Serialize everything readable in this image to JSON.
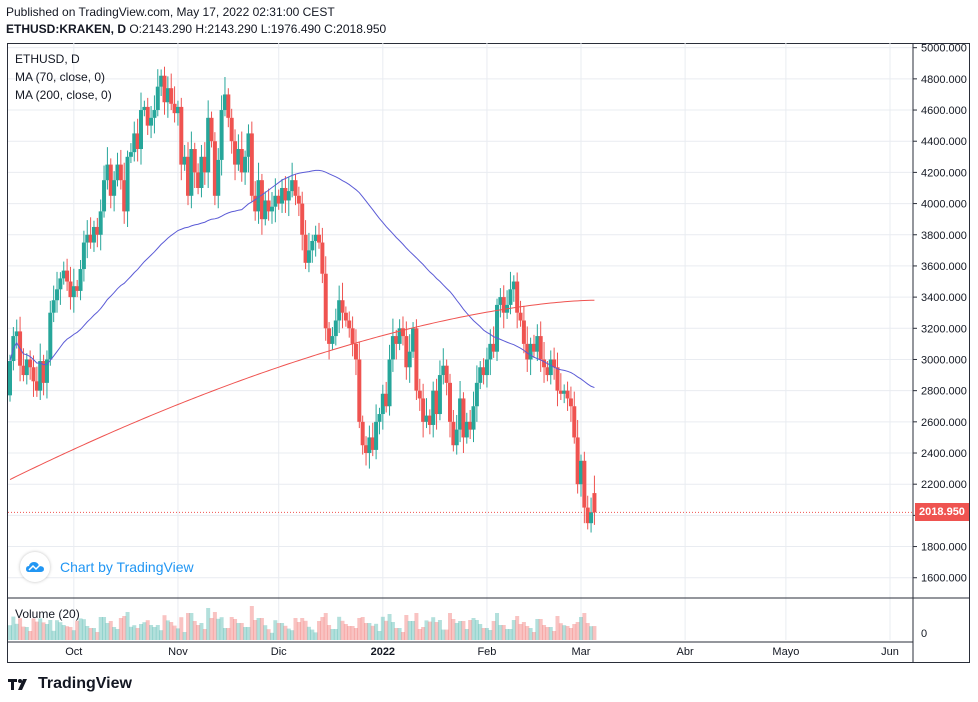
{
  "header": {
    "published": "Published on TradingView.com, May 17, 2022 02:31:00 CEST",
    "symbol": "ETHUSD:KRAKEN, D",
    "ohlc": "O:2143.290 H:2143.290 L:1976.490 C:2018.950"
  },
  "legend": {
    "symbol": "ETHUSD, D",
    "ma70": "MA (70, close, 0)",
    "ma200": "MA (200, close, 0)",
    "volume": "Volume (20)"
  },
  "branding": {
    "chart_by": "Chart by TradingView",
    "footer": "TradingView"
  },
  "last_price": "2018.950",
  "colors": {
    "up": "#26a69a",
    "down": "#ef5350",
    "ma70": "#5b5bd6",
    "ma200": "#ef5350",
    "grid": "#e9ecf1",
    "text": "#131722"
  },
  "chart_data": {
    "type": "candlestick",
    "y_ticks": [
      "5000.000",
      "4800.000",
      "4600.000",
      "4400.000",
      "4200.000",
      "4000.000",
      "3800.000",
      "3600.000",
      "3400.000",
      "3200.000",
      "3000.000",
      "2800.000",
      "2600.000",
      "2400.000",
      "2200.000",
      "2000.000",
      "1800.000",
      "1600.000"
    ],
    "ylim": [
      1470,
      5030
    ],
    "volume_tick": "0",
    "x_labels": [
      {
        "label": "Oct",
        "day": 19
      },
      {
        "label": "Nov",
        "day": 50
      },
      {
        "label": "Dic",
        "day": 80
      },
      {
        "label": "2022",
        "day": 111
      },
      {
        "label": "Feb",
        "day": 142
      },
      {
        "label": "Mar",
        "day": 170
      },
      {
        "label": "Abr",
        "day": 201
      },
      {
        "label": "Mayo",
        "day": 231
      },
      {
        "label": "Jun",
        "day": 262
      }
    ],
    "x_range": [
      0,
      262
    ],
    "candles": [
      {
        "d": 0,
        "o": 2770,
        "c": 2990
      },
      {
        "d": 1,
        "o": 2990,
        "c": 3150
      },
      {
        "d": 2,
        "o": 3150,
        "c": 3180
      },
      {
        "d": 3,
        "o": 3180,
        "c": 2960
      },
      {
        "d": 4,
        "o": 2960,
        "c": 2900
      },
      {
        "d": 5,
        "o": 2900,
        "c": 3000
      },
      {
        "d": 6,
        "o": 3000,
        "c": 2950
      },
      {
        "d": 7,
        "o": 2950,
        "c": 2860
      },
      {
        "d": 8,
        "o": 2860,
        "c": 2800
      },
      {
        "d": 9,
        "o": 2800,
        "c": 2990
      },
      {
        "d": 10,
        "o": 2990,
        "c": 2850
      },
      {
        "d": 11,
        "o": 2850,
        "c": 3000
      },
      {
        "d": 12,
        "o": 3000,
        "c": 3300
      },
      {
        "d": 13,
        "o": 3300,
        "c": 3380
      },
      {
        "d": 14,
        "o": 3380,
        "c": 3450
      },
      {
        "d": 15,
        "o": 3450,
        "c": 3520
      },
      {
        "d": 16,
        "o": 3520,
        "c": 3570
      },
      {
        "d": 17,
        "o": 3570,
        "c": 3500
      },
      {
        "d": 18,
        "o": 3500,
        "c": 3400
      },
      {
        "d": 19,
        "o": 3400,
        "c": 3470
      },
      {
        "d": 20,
        "o": 3470,
        "c": 3440
      },
      {
        "d": 21,
        "o": 3440,
        "c": 3580
      },
      {
        "d": 22,
        "o": 3580,
        "c": 3750
      },
      {
        "d": 23,
        "o": 3750,
        "c": 3800
      },
      {
        "d": 24,
        "o": 3800,
        "c": 3750
      },
      {
        "d": 25,
        "o": 3750,
        "c": 3850
      },
      {
        "d": 26,
        "o": 3850,
        "c": 3800
      },
      {
        "d": 27,
        "o": 3800,
        "c": 3950
      },
      {
        "d": 28,
        "o": 3950,
        "c": 4150
      },
      {
        "d": 29,
        "o": 4150,
        "c": 4250
      },
      {
        "d": 30,
        "o": 4250,
        "c": 4050
      },
      {
        "d": 31,
        "o": 4050,
        "c": 4150
      },
      {
        "d": 32,
        "o": 4150,
        "c": 4250
      },
      {
        "d": 33,
        "o": 4250,
        "c": 4150
      },
      {
        "d": 34,
        "o": 4150,
        "c": 3950
      },
      {
        "d": 35,
        "o": 3950,
        "c": 4300
      },
      {
        "d": 36,
        "o": 4300,
        "c": 4330
      },
      {
        "d": 37,
        "o": 4330,
        "c": 4450
      },
      {
        "d": 38,
        "o": 4450,
        "c": 4350
      },
      {
        "d": 39,
        "o": 4350,
        "c": 4600
      },
      {
        "d": 40,
        "o": 4600,
        "c": 4620
      },
      {
        "d": 41,
        "o": 4620,
        "c": 4500
      },
      {
        "d": 42,
        "o": 4500,
        "c": 4550
      },
      {
        "d": 43,
        "o": 4550,
        "c": 4600
      },
      {
        "d": 44,
        "o": 4600,
        "c": 4750
      },
      {
        "d": 45,
        "o": 4750,
        "c": 4820
      },
      {
        "d": 46,
        "o": 4820,
        "c": 4650
      },
      {
        "d": 47,
        "o": 4650,
        "c": 4740
      },
      {
        "d": 48,
        "o": 4740,
        "c": 4640
      },
      {
        "d": 49,
        "o": 4640,
        "c": 4580
      },
      {
        "d": 50,
        "o": 4580,
        "c": 4620
      },
      {
        "d": 51,
        "o": 4620,
        "c": 4250
      },
      {
        "d": 52,
        "o": 4250,
        "c": 4300
      },
      {
        "d": 53,
        "o": 4300,
        "c": 4050
      },
      {
        "d": 54,
        "o": 4050,
        "c": 4350
      },
      {
        "d": 55,
        "o": 4350,
        "c": 4200
      },
      {
        "d": 56,
        "o": 4200,
        "c": 4100
      },
      {
        "d": 57,
        "o": 4100,
        "c": 4300
      },
      {
        "d": 58,
        "o": 4300,
        "c": 4200
      },
      {
        "d": 59,
        "o": 4200,
        "c": 4550
      },
      {
        "d": 60,
        "o": 4550,
        "c": 4400
      },
      {
        "d": 61,
        "o": 4400,
        "c": 4050
      },
      {
        "d": 62,
        "o": 4050,
        "c": 4280
      },
      {
        "d": 63,
        "o": 4280,
        "c": 4600
      },
      {
        "d": 64,
        "o": 4600,
        "c": 4700
      },
      {
        "d": 65,
        "o": 4700,
        "c": 4550
      },
      {
        "d": 66,
        "o": 4550,
        "c": 4400
      },
      {
        "d": 67,
        "o": 4400,
        "c": 4250
      },
      {
        "d": 68,
        "o": 4250,
        "c": 4350
      },
      {
        "d": 69,
        "o": 4350,
        "c": 4200
      },
      {
        "d": 70,
        "o": 4200,
        "c": 4300
      },
      {
        "d": 71,
        "o": 4300,
        "c": 4450
      },
      {
        "d": 72,
        "o": 4450,
        "c": 4050
      },
      {
        "d": 73,
        "o": 4050,
        "c": 3950
      },
      {
        "d": 74,
        "o": 3950,
        "c": 4150
      },
      {
        "d": 75,
        "o": 4150,
        "c": 3900
      },
      {
        "d": 76,
        "o": 3900,
        "c": 4020
      },
      {
        "d": 77,
        "o": 4020,
        "c": 3950
      },
      {
        "d": 78,
        "o": 3950,
        "c": 3980
      },
      {
        "d": 79,
        "o": 3980,
        "c": 4050
      },
      {
        "d": 80,
        "o": 4050,
        "c": 4000
      },
      {
        "d": 81,
        "o": 4000,
        "c": 4100
      },
      {
        "d": 82,
        "o": 4100,
        "c": 4020
      },
      {
        "d": 83,
        "o": 4020,
        "c": 4080
      },
      {
        "d": 84,
        "o": 4080,
        "c": 4150
      },
      {
        "d": 85,
        "o": 4150,
        "c": 4050
      },
      {
        "d": 86,
        "o": 4050,
        "c": 4000
      },
      {
        "d": 87,
        "o": 4000,
        "c": 3800
      },
      {
        "d": 88,
        "o": 3800,
        "c": 3620
      },
      {
        "d": 89,
        "o": 3620,
        "c": 3700
      },
      {
        "d": 90,
        "o": 3700,
        "c": 3760
      },
      {
        "d": 91,
        "o": 3760,
        "c": 3800
      },
      {
        "d": 92,
        "o": 3800,
        "c": 3750
      },
      {
        "d": 93,
        "o": 3750,
        "c": 3550
      },
      {
        "d": 94,
        "o": 3550,
        "c": 3200
      },
      {
        "d": 95,
        "o": 3200,
        "c": 3100
      },
      {
        "d": 96,
        "o": 3100,
        "c": 3150
      },
      {
        "d": 97,
        "o": 3150,
        "c": 3250
      },
      {
        "d": 98,
        "o": 3250,
        "c": 3380
      },
      {
        "d": 99,
        "o": 3380,
        "c": 3300
      },
      {
        "d": 100,
        "o": 3300,
        "c": 3250
      },
      {
        "d": 101,
        "o": 3250,
        "c": 3200
      },
      {
        "d": 102,
        "o": 3200,
        "c": 3100
      },
      {
        "d": 103,
        "o": 3100,
        "c": 3000
      },
      {
        "d": 104,
        "o": 3000,
        "c": 2600
      },
      {
        "d": 105,
        "o": 2600,
        "c": 2450
      },
      {
        "d": 106,
        "o": 2450,
        "c": 2400
      },
      {
        "d": 107,
        "o": 2400,
        "c": 2500
      },
      {
        "d": 108,
        "o": 2500,
        "c": 2420
      },
      {
        "d": 109,
        "o": 2420,
        "c": 2600
      },
      {
        "d": 110,
        "o": 2600,
        "c": 2650
      },
      {
        "d": 111,
        "o": 2650,
        "c": 2780
      },
      {
        "d": 112,
        "o": 2780,
        "c": 2700
      },
      {
        "d": 113,
        "o": 2700,
        "c": 3000
      },
      {
        "d": 114,
        "o": 3000,
        "c": 3150
      },
      {
        "d": 115,
        "o": 3150,
        "c": 3100
      },
      {
        "d": 116,
        "o": 3100,
        "c": 3200
      },
      {
        "d": 117,
        "o": 3200,
        "c": 3150
      },
      {
        "d": 118,
        "o": 3150,
        "c": 2950
      },
      {
        "d": 119,
        "o": 2950,
        "c": 3050
      },
      {
        "d": 120,
        "o": 3050,
        "c": 3200
      },
      {
        "d": 121,
        "o": 3200,
        "c": 2800
      },
      {
        "d": 122,
        "o": 2800,
        "c": 2750
      },
      {
        "d": 123,
        "o": 2750,
        "c": 2600
      },
      {
        "d": 124,
        "o": 2600,
        "c": 2640
      },
      {
        "d": 125,
        "o": 2640,
        "c": 2580
      },
      {
        "d": 126,
        "o": 2580,
        "c": 2800
      },
      {
        "d": 127,
        "o": 2800,
        "c": 2650
      },
      {
        "d": 128,
        "o": 2650,
        "c": 2900
      },
      {
        "d": 129,
        "o": 2900,
        "c": 2960
      },
      {
        "d": 130,
        "o": 2960,
        "c": 2850
      },
      {
        "d": 131,
        "o": 2850,
        "c": 2600
      },
      {
        "d": 132,
        "o": 2600,
        "c": 2450
      },
      {
        "d": 133,
        "o": 2450,
        "c": 2550
      },
      {
        "d": 134,
        "o": 2550,
        "c": 2750
      },
      {
        "d": 135,
        "o": 2750,
        "c": 2500
      },
      {
        "d": 136,
        "o": 2500,
        "c": 2600
      },
      {
        "d": 137,
        "o": 2600,
        "c": 2550
      },
      {
        "d": 138,
        "o": 2550,
        "c": 2700
      },
      {
        "d": 139,
        "o": 2700,
        "c": 2850
      },
      {
        "d": 140,
        "o": 2850,
        "c": 2950
      },
      {
        "d": 141,
        "o": 2950,
        "c": 2900
      },
      {
        "d": 142,
        "o": 2900,
        "c": 3000
      },
      {
        "d": 143,
        "o": 3000,
        "c": 3100
      },
      {
        "d": 144,
        "o": 3100,
        "c": 3050
      },
      {
        "d": 145,
        "o": 3050,
        "c": 3350
      },
      {
        "d": 146,
        "o": 3350,
        "c": 3400
      },
      {
        "d": 147,
        "o": 3400,
        "c": 3300
      },
      {
        "d": 148,
        "o": 3300,
        "c": 3350
      },
      {
        "d": 149,
        "o": 3350,
        "c": 3450
      },
      {
        "d": 150,
        "o": 3450,
        "c": 3500
      },
      {
        "d": 151,
        "o": 3500,
        "c": 3300
      },
      {
        "d": 152,
        "o": 3300,
        "c": 3250
      },
      {
        "d": 153,
        "o": 3250,
        "c": 3100
      },
      {
        "d": 154,
        "o": 3100,
        "c": 3000
      },
      {
        "d": 155,
        "o": 3000,
        "c": 3100
      },
      {
        "d": 156,
        "o": 3100,
        "c": 3050
      },
      {
        "d": 157,
        "o": 3050,
        "c": 3150
      },
      {
        "d": 158,
        "o": 3150,
        "c": 3000
      },
      {
        "d": 159,
        "o": 3000,
        "c": 2950
      },
      {
        "d": 160,
        "o": 2950,
        "c": 2900
      },
      {
        "d": 161,
        "o": 2900,
        "c": 3000
      },
      {
        "d": 162,
        "o": 3000,
        "c": 2950
      },
      {
        "d": 163,
        "o": 2950,
        "c": 2800
      },
      {
        "d": 164,
        "o": 2800,
        "c": 2780
      },
      {
        "d": 165,
        "o": 2780,
        "c": 2800
      },
      {
        "d": 166,
        "o": 2800,
        "c": 2750
      },
      {
        "d": 167,
        "o": 2750,
        "c": 2700
      },
      {
        "d": 168,
        "o": 2700,
        "c": 2500
      },
      {
        "d": 169,
        "o": 2500,
        "c": 2200
      },
      {
        "d": 170,
        "o": 2200,
        "c": 2350
      },
      {
        "d": 171,
        "o": 2350,
        "c": 2050
      },
      {
        "d": 172,
        "o": 2050,
        "c": 1950
      },
      {
        "d": 173,
        "o": 1950,
        "c": 2020
      },
      {
        "d": 174,
        "o": 2143,
        "c": 2019
      }
    ]
  }
}
